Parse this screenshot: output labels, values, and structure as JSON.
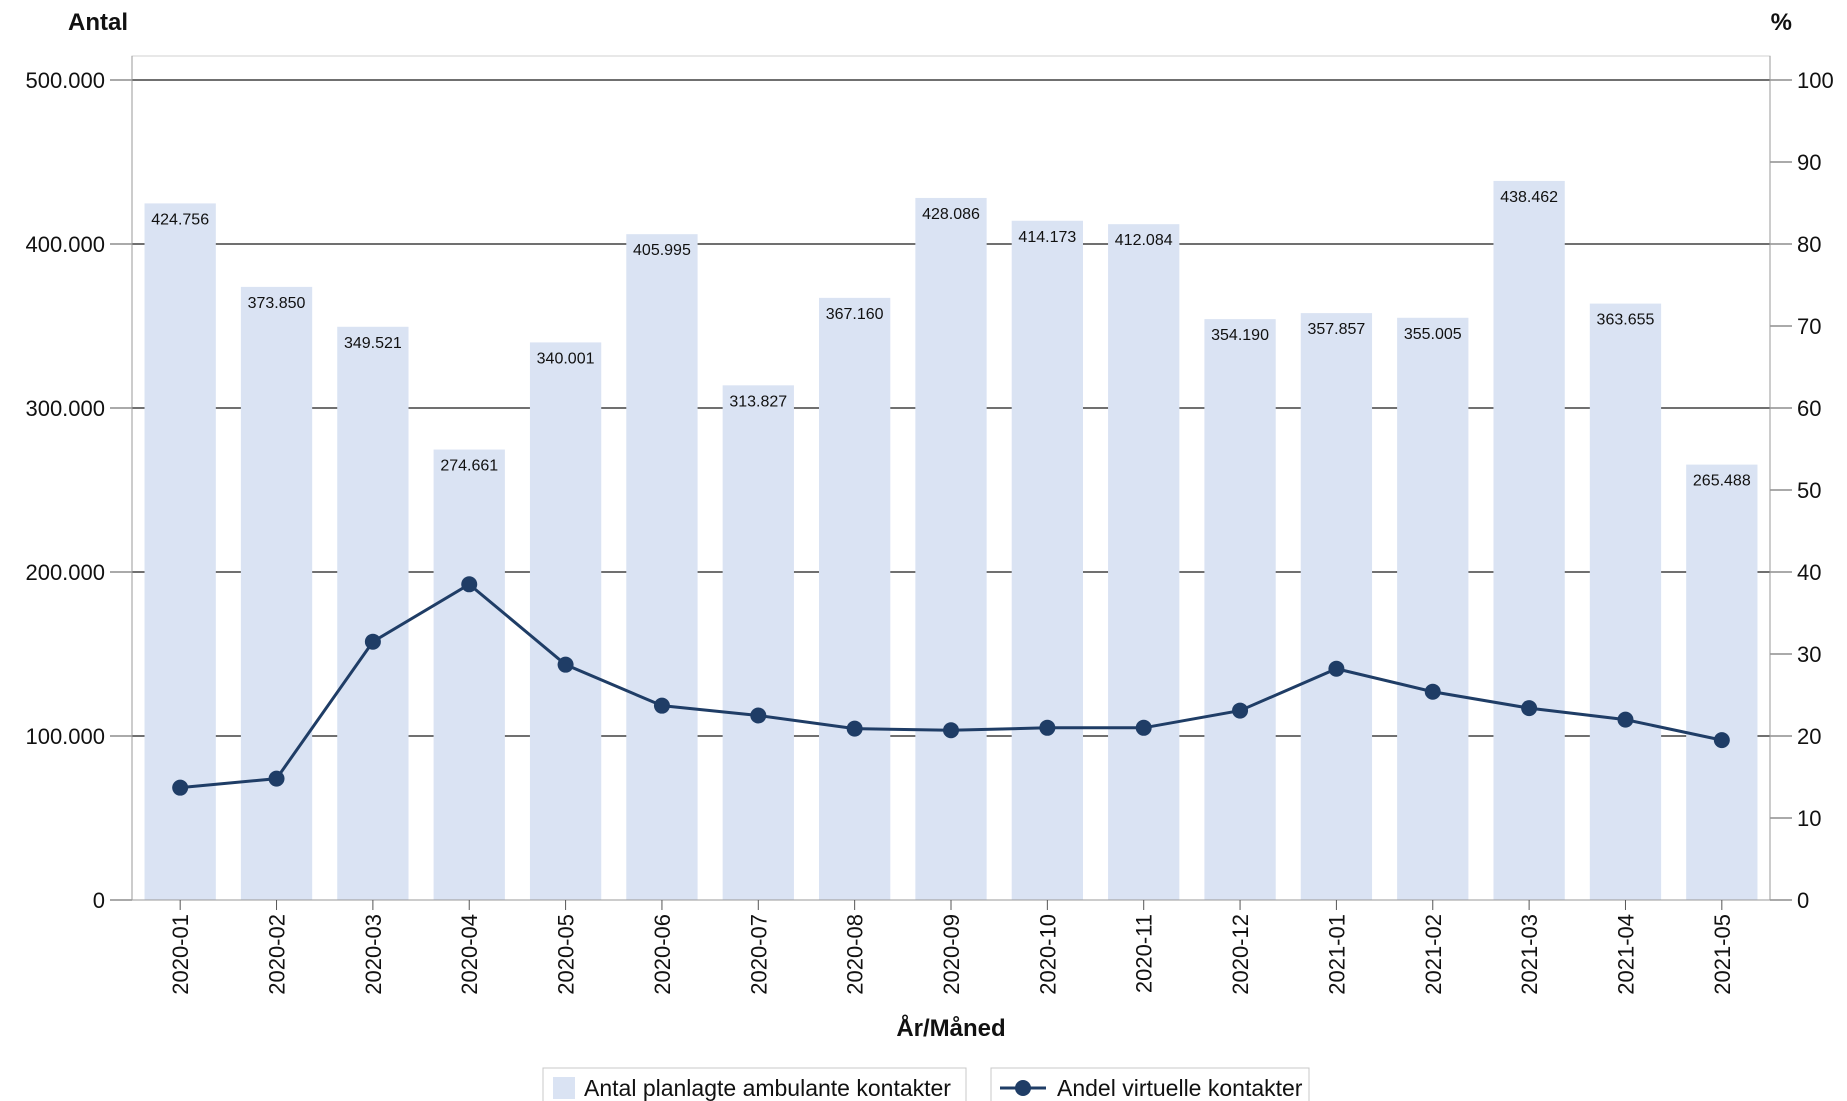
{
  "chart_data": {
    "type": "bar",
    "categories": [
      "2020-01",
      "2020-02",
      "2020-03",
      "2020-04",
      "2020-05",
      "2020-06",
      "2020-07",
      "2020-08",
      "2020-09",
      "2020-10",
      "2020-11",
      "2020-12",
      "2021-01",
      "2021-02",
      "2021-03",
      "2021-04",
      "2021-05"
    ],
    "series": [
      {
        "name": "Antal planlagte ambulante kontakter",
        "type": "bar",
        "axis": "left",
        "color": "#dae3f3",
        "values": [
          424756,
          373850,
          349521,
          274661,
          340001,
          405995,
          313827,
          367160,
          428086,
          414173,
          412084,
          354190,
          357857,
          355005,
          438462,
          363655,
          265488
        ],
        "labels": [
          "424.756",
          "373.850",
          "349.521",
          "274.661",
          "340.001",
          "405.995",
          "313.827",
          "367.160",
          "428.086",
          "414.173",
          "412.084",
          "354.190",
          "357.857",
          "355.005",
          "438.462",
          "363.655",
          "265.488"
        ]
      },
      {
        "name": "Andel virtuelle kontakter",
        "type": "line",
        "axis": "right",
        "color": "#1f3d66",
        "values": [
          13.7,
          14.8,
          31.5,
          38.5,
          28.7,
          23.7,
          22.5,
          20.9,
          20.7,
          21.0,
          21.0,
          23.1,
          28.2,
          25.4,
          23.4,
          22.0,
          19.5
        ]
      }
    ],
    "xlabel": "År/Måned",
    "ylabel": "Antal",
    "y2label": "%",
    "ylim": [
      0,
      500000
    ],
    "y2lim": [
      0,
      100
    ],
    "yticks": [
      0,
      100000,
      200000,
      300000,
      400000,
      500000
    ],
    "ytick_labels": [
      "0",
      "100.000",
      "200.000",
      "300.000",
      "400.000",
      "500.000"
    ],
    "y2ticks": [
      0,
      10,
      20,
      30,
      40,
      50,
      60,
      70,
      80,
      90,
      100
    ],
    "y2tick_labels": [
      "0",
      "10",
      "20",
      "30",
      "40",
      "50",
      "60",
      "70",
      "80",
      "90",
      "100"
    ],
    "grid": true,
    "legend_position": "bottom"
  }
}
